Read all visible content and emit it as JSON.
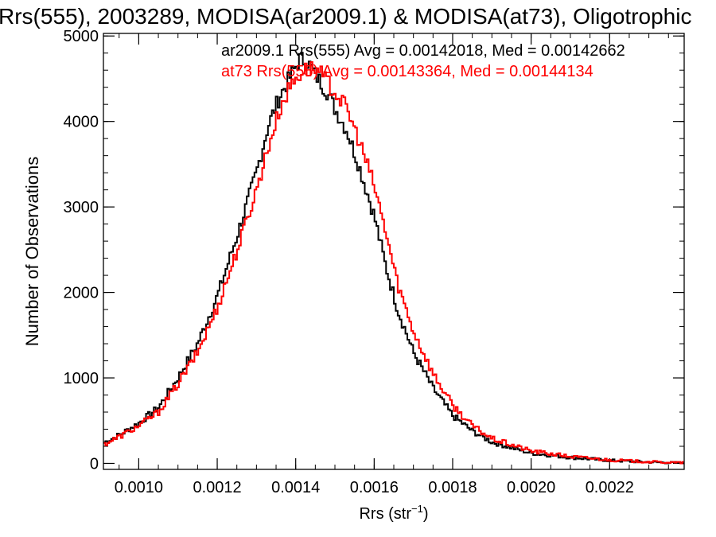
{
  "chart_data": {
    "type": "line",
    "title": "Rrs(555), 2003289, MODISA(ar2009.1) & MODISA(at73), Oligotrophic",
    "xlabel": "Rrs (str",
    "xlabel_sup": "−1",
    "xlabel_close": ")",
    "ylabel": "Number of Observations",
    "xlim": [
      0.00091,
      0.00239
    ],
    "ylim": [
      -70,
      5030
    ],
    "xticks": [
      {
        "v": 0.001,
        "label": "0.0010"
      },
      {
        "v": 0.0012,
        "label": "0.0012"
      },
      {
        "v": 0.0014,
        "label": "0.0014"
      },
      {
        "v": 0.0016,
        "label": "0.0016"
      },
      {
        "v": 0.0018,
        "label": "0.0018"
      },
      {
        "v": 0.002,
        "label": "0.0020"
      },
      {
        "v": 0.0022,
        "label": "0.0022"
      }
    ],
    "yticks": [
      {
        "v": 0,
        "label": "0"
      },
      {
        "v": 1000,
        "label": "1000"
      },
      {
        "v": 2000,
        "label": "2000"
      },
      {
        "v": 3000,
        "label": "3000"
      },
      {
        "v": 4000,
        "label": "4000"
      },
      {
        "v": 5000,
        "label": "5000"
      }
    ],
    "xminor_step": 5e-05,
    "yminor_step": 200,
    "annotations": [
      {
        "text": "ar2009.1 Rrs(555) Avg = 0.00142018, Med = 0.00142662",
        "color": "#000000"
      },
      {
        "text": "at73 Rrs(555) Avg = 0.00143364, Med = 0.00144134",
        "color": "#ff0000"
      }
    ],
    "series": [
      {
        "color": "#000000",
        "step": "histogram",
        "points": [
          [
            0.00091,
            240
          ],
          [
            0.00095,
            330
          ],
          [
            0.001,
            470
          ],
          [
            0.00105,
            650
          ],
          [
            0.0011,
            1000
          ],
          [
            0.00115,
            1400
          ],
          [
            0.0012,
            1950
          ],
          [
            0.00125,
            2650
          ],
          [
            0.0013,
            3400
          ],
          [
            0.00133,
            3950
          ],
          [
            0.00136,
            4300
          ],
          [
            0.00139,
            4550
          ],
          [
            0.00141,
            4730
          ],
          [
            0.00143,
            4700
          ],
          [
            0.00145,
            4550
          ],
          [
            0.00148,
            4350
          ],
          [
            0.0015,
            4150
          ],
          [
            0.00153,
            3900
          ],
          [
            0.00156,
            3500
          ],
          [
            0.0016,
            2900
          ],
          [
            0.00163,
            2300
          ],
          [
            0.00166,
            1800
          ],
          [
            0.0017,
            1300
          ],
          [
            0.00175,
            880
          ],
          [
            0.0018,
            560
          ],
          [
            0.00185,
            380
          ],
          [
            0.0019,
            250
          ],
          [
            0.002,
            120
          ],
          [
            0.0021,
            70
          ],
          [
            0.0022,
            35
          ],
          [
            0.0023,
            15
          ],
          [
            0.00239,
            5
          ]
        ]
      },
      {
        "color": "#ff0000",
        "step": "histogram",
        "points": [
          [
            0.00091,
            220
          ],
          [
            0.00095,
            310
          ],
          [
            0.001,
            440
          ],
          [
            0.00105,
            600
          ],
          [
            0.0011,
            930
          ],
          [
            0.00115,
            1300
          ],
          [
            0.0012,
            1820
          ],
          [
            0.00125,
            2480
          ],
          [
            0.0013,
            3200
          ],
          [
            0.00133,
            3700
          ],
          [
            0.00136,
            4150
          ],
          [
            0.00139,
            4450
          ],
          [
            0.00142,
            4600
          ],
          [
            0.00145,
            4620
          ],
          [
            0.00147,
            4520
          ],
          [
            0.0015,
            4350
          ],
          [
            0.00153,
            4150
          ],
          [
            0.00156,
            3800
          ],
          [
            0.0016,
            3250
          ],
          [
            0.00163,
            2700
          ],
          [
            0.00166,
            2100
          ],
          [
            0.0017,
            1550
          ],
          [
            0.00175,
            1050
          ],
          [
            0.0018,
            680
          ],
          [
            0.00185,
            440
          ],
          [
            0.0019,
            290
          ],
          [
            0.002,
            145
          ],
          [
            0.0021,
            80
          ],
          [
            0.0022,
            40
          ],
          [
            0.0023,
            18
          ],
          [
            0.00239,
            6
          ]
        ]
      }
    ]
  }
}
